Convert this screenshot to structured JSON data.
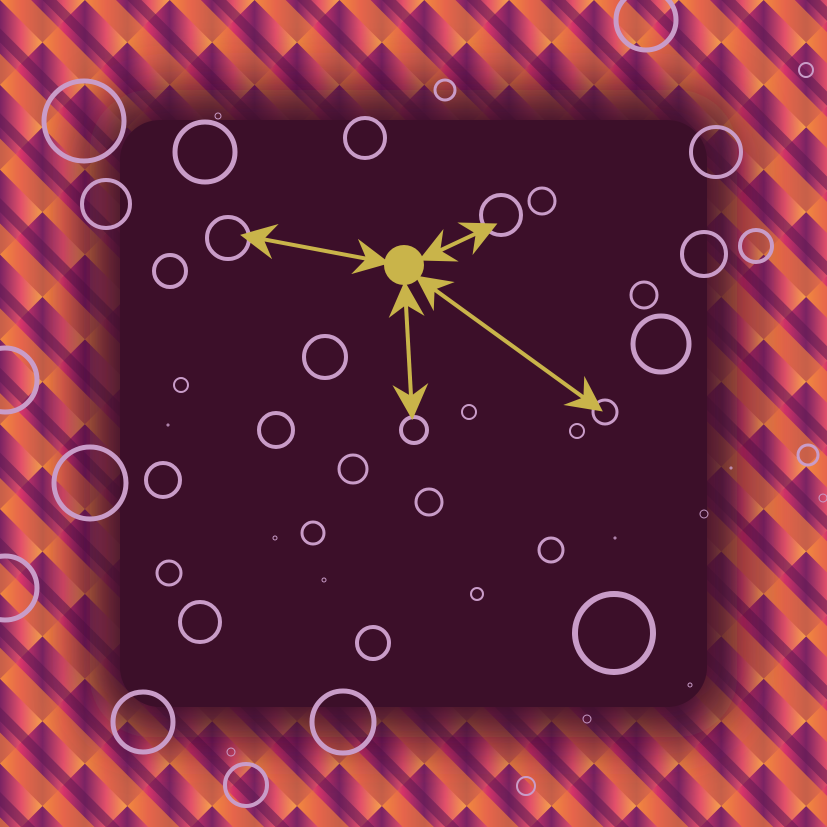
{
  "colors": {
    "background_center": "#3c0f29",
    "frame_orange": "#f08a3a",
    "frame_magenta": "#c8265e",
    "frame_purple": "#6a1f5c",
    "ring": "#c99cc8",
    "hub": "#c9b44a",
    "arrow": "#c9b44a"
  },
  "hub": {
    "label": "",
    "icon": "hub-dot-icon"
  },
  "rings": {
    "count": 52,
    "style": "outlined-circles"
  },
  "arrows": [
    {
      "name": "arrow-to-left-ring",
      "direction": "bidirectional"
    },
    {
      "name": "arrow-to-upper-right-ring",
      "direction": "bidirectional"
    },
    {
      "name": "arrow-to-lower-ring",
      "direction": "bidirectional"
    },
    {
      "name": "arrow-to-right-ring",
      "direction": "bidirectional"
    }
  ]
}
